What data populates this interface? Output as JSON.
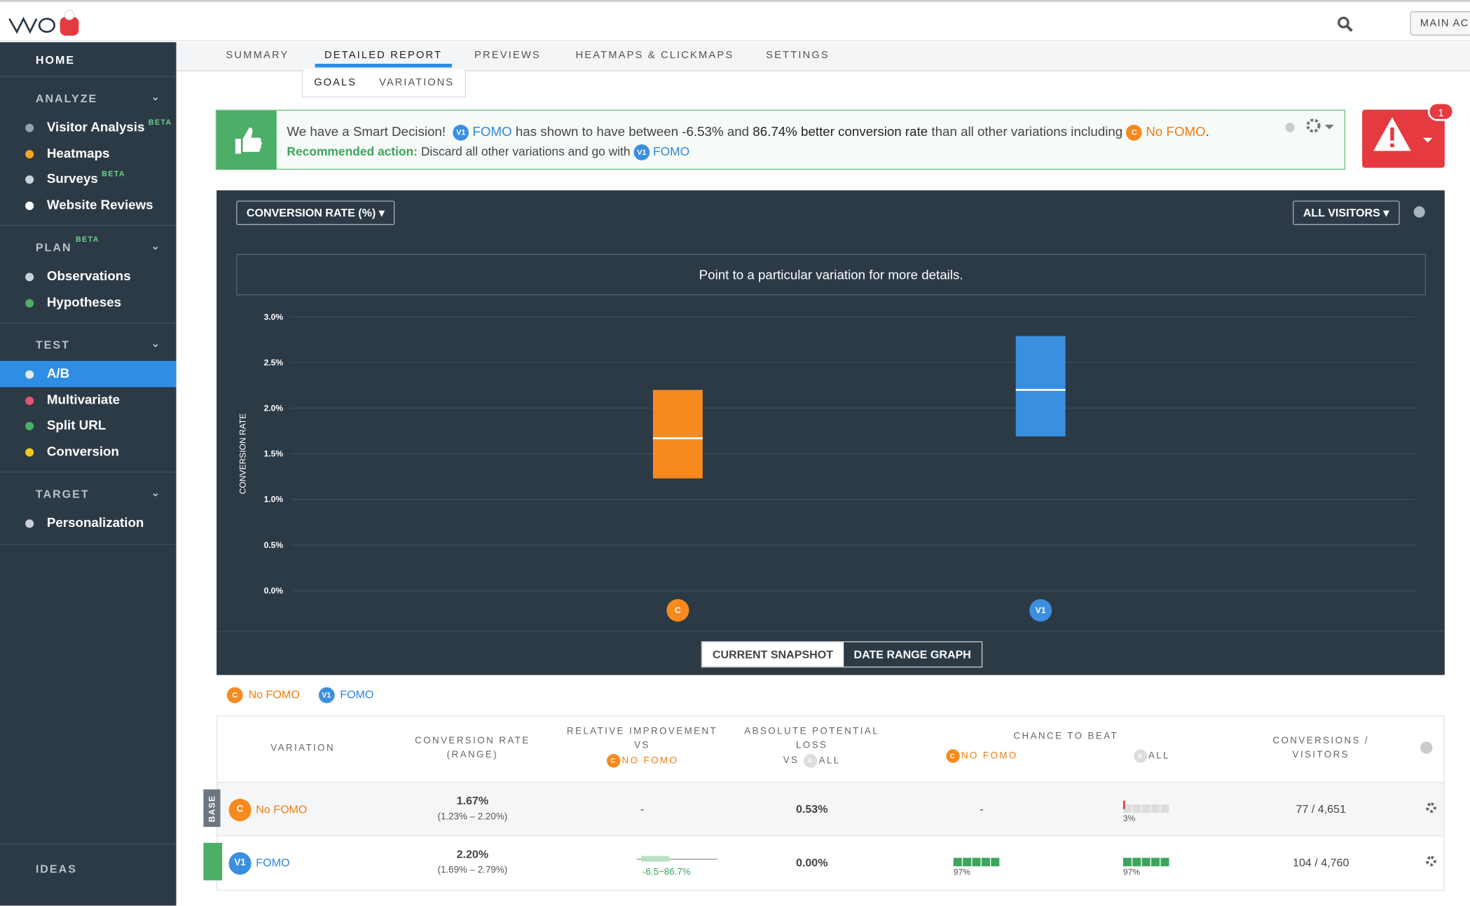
{
  "topbar": {
    "account": "MAIN AC"
  },
  "sidebar": {
    "home": "HOME",
    "sections": [
      {
        "title": "ANALYZE",
        "items": [
          {
            "label": "Visitor Analysis",
            "badge": "BETA",
            "icon": "#8fa3b3"
          },
          {
            "label": "Heatmaps",
            "icon": "#f5a623"
          },
          {
            "label": "Surveys",
            "badge": "BETA",
            "icon": "#c9d1d8"
          },
          {
            "label": "Website Reviews",
            "icon": "#ffffff"
          }
        ]
      },
      {
        "title": "PLAN",
        "badge": "BETA",
        "items": [
          {
            "label": "Observations",
            "icon": "#c9d1d8"
          },
          {
            "label": "Hypotheses",
            "icon": "#4cae67"
          }
        ]
      },
      {
        "title": "TEST",
        "items": [
          {
            "label": "A/B",
            "icon": "#e4e9ee",
            "active": true
          },
          {
            "label": "Multivariate",
            "icon": "#e0566b"
          },
          {
            "label": "Split URL",
            "icon": "#4cae67"
          },
          {
            "label": "Conversion",
            "icon": "#f5c623"
          }
        ]
      },
      {
        "title": "TARGET",
        "items": [
          {
            "label": "Personalization",
            "icon": "#c9d1d8"
          }
        ]
      }
    ],
    "ideas": "IDEAS"
  },
  "tabs": {
    "items": [
      "SUMMARY",
      "DETAILED REPORT",
      "PREVIEWS",
      "HEATMAPS & CLICKMAPS",
      "SETTINGS"
    ],
    "active": 1
  },
  "subtabs": {
    "items": [
      "GOALS",
      "VARIATIONS"
    ],
    "active": 0
  },
  "decision": {
    "intro": "We have a Smart Decision!",
    "badge": "V1",
    "winner": "FOMO",
    "text1": "has shown to have between",
    "low": "-6.53%",
    "and": "and",
    "high": "86.74%",
    "better": "better conversion rate",
    "text2": "than all other variations including",
    "base_badge": "C",
    "base": "No FOMO",
    "action_label": "Recommended action:",
    "action": "Discard all other variations and go with",
    "action_badge": "V1",
    "action_winner": "FOMO"
  },
  "alert_count": "1",
  "chart": {
    "metric": "CONVERSION RATE (%)",
    "segment": "ALL VISITORS",
    "hint": "Point to a particular variation for more details.",
    "y_label": "CONVERSION RATE",
    "ylim": [
      0,
      3
    ],
    "yticks": [
      {
        "value": 0,
        "label": "0.0%"
      },
      {
        "value": 0.5,
        "label": "0.5%"
      },
      {
        "value": 1,
        "label": "1.0%"
      },
      {
        "value": 1.5,
        "label": "1.5%"
      },
      {
        "value": 2,
        "label": "2.0%"
      },
      {
        "value": 2.5,
        "label": "2.5%"
      },
      {
        "value": 3,
        "label": "3.0%"
      }
    ],
    "series": [
      {
        "badge": "C",
        "name": "No FOMO",
        "color": "#f68a1e",
        "low": 1.23,
        "high": 2.2,
        "mean": 1.67
      },
      {
        "badge": "V1",
        "name": "FOMO",
        "color": "#3b8fe0",
        "low": 1.69,
        "high": 2.79,
        "mean": 2.2
      }
    ],
    "toggle": [
      "CURRENT SNAPSHOT",
      "DATE RANGE GRAPH"
    ]
  },
  "table": {
    "headers": {
      "variation": "VARIATION",
      "rate": "CONVERSION RATE",
      "rate_sub": "(RANGE)",
      "improvement": "RELATIVE IMPROVEMENT",
      "vs": "VS",
      "loss": "ABSOLUTE POTENTIAL LOSS",
      "loss_vs": "VS",
      "all_badge": "A",
      "all": "ALL",
      "chance": "CHANCE TO BEAT",
      "base_badge": "C",
      "base": "NO FOMO",
      "all2": "ALL",
      "conversions": "CONVERSIONS /",
      "visitors": "VISITORS"
    },
    "base_label": "BASE",
    "rows": [
      {
        "badge": "C",
        "name": "No FOMO",
        "rate": "1.67%",
        "range": "(1.23% – 2.20%)",
        "improvement": "-",
        "loss": "0.53%",
        "chance_base": "-",
        "chance_all": "3%",
        "conversions": "77 / 4,651"
      },
      {
        "badge": "V1",
        "name": "FOMO",
        "rate": "2.20%",
        "range": "(1.69% – 2.79%)",
        "improvement": "-6.5~86.7%",
        "loss": "0.00%",
        "chance_base": "97%",
        "chance_all": "97%",
        "conversions": "104 / 4,760"
      }
    ]
  }
}
